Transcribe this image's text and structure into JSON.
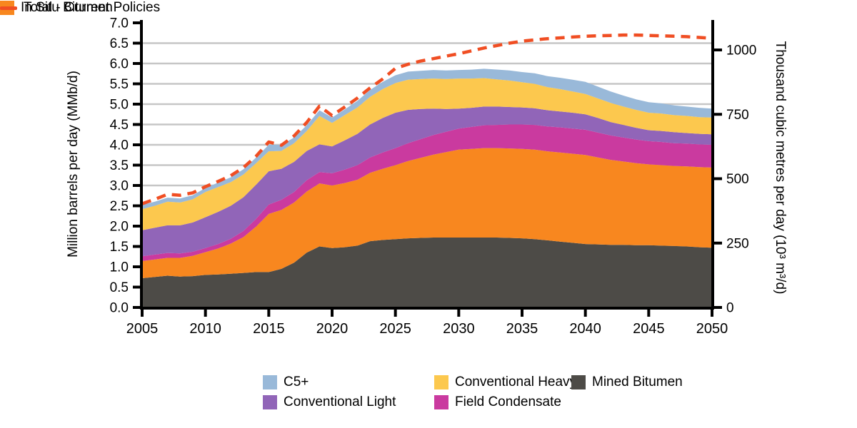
{
  "left_axis": {
    "title": "Million barrels per day (MMb/d)",
    "tick_values": [
      0.0,
      0.5,
      1.0,
      1.5,
      2.0,
      2.5,
      3.0,
      3.5,
      4.0,
      4.5,
      5.0,
      5.5,
      6.0,
      6.5,
      7.0
    ],
    "tick_labels": [
      "0.0",
      "0.5",
      "1.0",
      "1.5",
      "2.0",
      "2.5",
      "3.0",
      "3.5",
      "4.0",
      "4.5",
      "5.0",
      "5.5",
      "6.0",
      "6.5",
      "7.0"
    ]
  },
  "right_axis": {
    "title": "Thousand cubic metres per day (10³ m³/d)",
    "tick_values": [
      0,
      250,
      500,
      750,
      1000
    ],
    "tick_labels": [
      "0",
      "250",
      "500",
      "750",
      "1000"
    ]
  },
  "x_axis": {
    "tick_values": [
      2005,
      2010,
      2015,
      2020,
      2025,
      2030,
      2035,
      2040,
      2045,
      2050
    ],
    "tick_labels": [
      "2005",
      "2010",
      "2015",
      "2020",
      "2025",
      "2030",
      "2035",
      "2040",
      "2045",
      "2050"
    ]
  },
  "legend": {
    "items": [
      {
        "label": "C5+",
        "color": "#99b9d9",
        "type": "box"
      },
      {
        "label": "Conventional Light",
        "color": "#9165b8",
        "type": "box"
      },
      {
        "label": "Conventional Heavy",
        "color": "#fcc84e",
        "type": "box"
      },
      {
        "label": "Field Condensate",
        "color": "#ca3a9f",
        "type": "box"
      },
      {
        "label": "Mined Bitumen",
        "color": "#4d4b47",
        "type": "box"
      },
      {
        "label": "In Situ Bitumen",
        "color": "#f8871f",
        "type": "box"
      },
      {
        "label": "Total - Current Policies",
        "color": "#f04e23",
        "type": "dash"
      }
    ]
  },
  "colors": {
    "gridline": "#c6c6c6",
    "axis": "#000000",
    "total_line": "#f04e23"
  },
  "chart_data": {
    "type": "area",
    "stacked": true,
    "title": "",
    "xlabel": "",
    "ylabel_left": "Million barrels per day (MMb/d)",
    "ylabel_right": "Thousand cubic metres per day (10³ m³/d)",
    "ylim_left": [
      0,
      7.0
    ],
    "ylim_right": [
      0,
      1108
    ],
    "xlim": [
      2005,
      2050
    ],
    "grid": "horizontal, every 0.5 MMb/d",
    "legend_position": "bottom",
    "x": [
      2005,
      2006,
      2007,
      2008,
      2009,
      2010,
      2011,
      2012,
      2013,
      2014,
      2015,
      2016,
      2017,
      2018,
      2019,
      2020,
      2021,
      2022,
      2023,
      2024,
      2025,
      2026,
      2027,
      2028,
      2029,
      2030,
      2031,
      2032,
      2033,
      2034,
      2035,
      2036,
      2037,
      2038,
      2039,
      2040,
      2041,
      2042,
      2043,
      2044,
      2045,
      2046,
      2047,
      2048,
      2049,
      2050
    ],
    "series": [
      {
        "name": "Mined Bitumen",
        "color": "#4d4b47",
        "kind": "stacked-area",
        "values": [
          0.72,
          0.75,
          0.78,
          0.76,
          0.77,
          0.8,
          0.81,
          0.83,
          0.85,
          0.87,
          0.87,
          0.95,
          1.1,
          1.35,
          1.5,
          1.46,
          1.48,
          1.52,
          1.63,
          1.66,
          1.68,
          1.7,
          1.71,
          1.72,
          1.72,
          1.72,
          1.72,
          1.72,
          1.72,
          1.71,
          1.7,
          1.68,
          1.65,
          1.62,
          1.59,
          1.56,
          1.55,
          1.54,
          1.54,
          1.53,
          1.53,
          1.52,
          1.51,
          1.5,
          1.48,
          1.47
        ]
      },
      {
        "name": "In Situ Bitumen",
        "color": "#f8871f",
        "kind": "stacked-area",
        "values": [
          0.42,
          0.43,
          0.44,
          0.46,
          0.5,
          0.56,
          0.64,
          0.74,
          0.88,
          1.12,
          1.43,
          1.45,
          1.48,
          1.5,
          1.55,
          1.54,
          1.58,
          1.62,
          1.68,
          1.75,
          1.82,
          1.9,
          1.97,
          2.04,
          2.1,
          2.16,
          2.18,
          2.2,
          2.2,
          2.2,
          2.2,
          2.2,
          2.19,
          2.19,
          2.19,
          2.19,
          2.14,
          2.09,
          2.05,
          2.02,
          1.99,
          1.98,
          1.97,
          1.97,
          1.97,
          1.97
        ]
      },
      {
        "name": "Field Condensate",
        "color": "#ca3a9f",
        "kind": "stacked-area",
        "values": [
          0.12,
          0.12,
          0.12,
          0.11,
          0.1,
          0.1,
          0.11,
          0.12,
          0.15,
          0.19,
          0.23,
          0.25,
          0.26,
          0.28,
          0.28,
          0.3,
          0.33,
          0.36,
          0.38,
          0.4,
          0.42,
          0.44,
          0.46,
          0.48,
          0.5,
          0.52,
          0.54,
          0.56,
          0.57,
          0.59,
          0.6,
          0.61,
          0.61,
          0.62,
          0.62,
          0.62,
          0.61,
          0.6,
          0.59,
          0.58,
          0.57,
          0.57,
          0.56,
          0.56,
          0.56,
          0.56
        ]
      },
      {
        "name": "Conventional Light",
        "color": "#9165b8",
        "kind": "stacked-area",
        "values": [
          0.64,
          0.66,
          0.68,
          0.69,
          0.72,
          0.76,
          0.79,
          0.81,
          0.83,
          0.84,
          0.82,
          0.76,
          0.74,
          0.72,
          0.68,
          0.66,
          0.72,
          0.77,
          0.81,
          0.85,
          0.87,
          0.82,
          0.74,
          0.65,
          0.56,
          0.49,
          0.47,
          0.46,
          0.45,
          0.43,
          0.42,
          0.41,
          0.4,
          0.39,
          0.39,
          0.38,
          0.36,
          0.33,
          0.31,
          0.29,
          0.27,
          0.27,
          0.27,
          0.26,
          0.26,
          0.26
        ]
      },
      {
        "name": "Conventional Heavy",
        "color": "#fcc84e",
        "kind": "stacked-area",
        "values": [
          0.52,
          0.54,
          0.58,
          0.56,
          0.57,
          0.62,
          0.61,
          0.58,
          0.56,
          0.53,
          0.49,
          0.44,
          0.46,
          0.49,
          0.7,
          0.58,
          0.62,
          0.65,
          0.68,
          0.71,
          0.73,
          0.74,
          0.74,
          0.74,
          0.74,
          0.74,
          0.72,
          0.7,
          0.67,
          0.65,
          0.62,
          0.6,
          0.57,
          0.55,
          0.52,
          0.5,
          0.48,
          0.47,
          0.45,
          0.44,
          0.43,
          0.43,
          0.42,
          0.42,
          0.41,
          0.41
        ]
      },
      {
        "name": "C5+",
        "color": "#99b9d9",
        "kind": "stacked-area",
        "values": [
          0.1,
          0.1,
          0.1,
          0.1,
          0.1,
          0.1,
          0.11,
          0.12,
          0.13,
          0.14,
          0.16,
          0.15,
          0.14,
          0.14,
          0.14,
          0.13,
          0.14,
          0.16,
          0.17,
          0.18,
          0.19,
          0.2,
          0.2,
          0.21,
          0.21,
          0.21,
          0.22,
          0.23,
          0.24,
          0.25,
          0.25,
          0.26,
          0.27,
          0.28,
          0.29,
          0.3,
          0.29,
          0.28,
          0.27,
          0.26,
          0.26,
          0.25,
          0.24,
          0.23,
          0.23,
          0.22
        ]
      },
      {
        "name": "Total - Current Policies",
        "color": "#f04e23",
        "kind": "dashed-line",
        "values": [
          2.55,
          2.66,
          2.78,
          2.76,
          2.82,
          2.97,
          3.1,
          3.24,
          3.44,
          3.72,
          4.07,
          3.99,
          4.22,
          4.55,
          4.95,
          4.72,
          4.93,
          5.15,
          5.4,
          5.62,
          5.88,
          5.98,
          6.06,
          6.12,
          6.18,
          6.24,
          6.31,
          6.38,
          6.44,
          6.5,
          6.55,
          6.58,
          6.61,
          6.63,
          6.65,
          6.67,
          6.68,
          6.69,
          6.7,
          6.7,
          6.69,
          6.68,
          6.67,
          6.66,
          6.64,
          6.62
        ]
      }
    ]
  }
}
